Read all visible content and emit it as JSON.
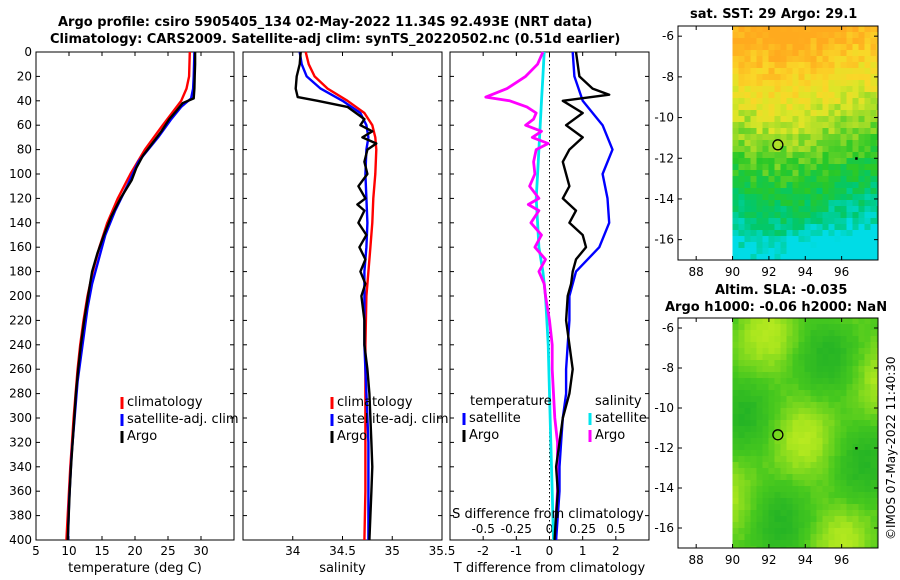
{
  "titles": {
    "line1": "Argo profile: csiro 5905405_134 02-May-2022 11.34S 92.493E (NRT data)",
    "line2": "Climatology: CARS2009. Satellite-adj clim: synTS_20220502.nc (0.51d earlier)",
    "sst": "sat. SST: 29 Argo: 29.1",
    "sla1": "Altim. SLA: -0.035",
    "sla2": "Argo h1000: -0.06 h2000: NaN"
  },
  "watermark": "©IMOS 07-May-2022 11:40:30",
  "colors": {
    "climatology": "#ff0000",
    "satellite": "#0000ff",
    "argo": "#000000",
    "sal_sat": "#00e5ee",
    "sal_argo": "#ff00ff"
  },
  "chart_data": [
    {
      "type": "line",
      "xlabel": "temperature (deg C)",
      "ylabel": "",
      "xlim": [
        5,
        35
      ],
      "ylim": [
        400,
        0
      ],
      "xticks": [
        "5",
        "10",
        "15",
        "20",
        "25",
        "30"
      ],
      "yticks": [
        "0",
        "20",
        "40",
        "60",
        "80",
        "100",
        "120",
        "140",
        "160",
        "180",
        "200",
        "220",
        "240",
        "260",
        "280",
        "300",
        "320",
        "340",
        "360",
        "380",
        "400"
      ],
      "legend": [
        "climatology",
        "satellite-adj. clim",
        "Argo"
      ],
      "series": [
        {
          "name": "climatology",
          "color": "#ff0000",
          "depth": [
            0,
            20,
            30,
            40,
            50,
            60,
            80,
            100,
            120,
            140,
            160,
            180,
            200,
            220,
            240,
            260,
            280,
            300,
            320,
            340,
            360,
            380,
            400
          ],
          "values": [
            28.3,
            28.2,
            27.8,
            27,
            25.6,
            24.2,
            21.5,
            19.3,
            17.4,
            15.8,
            14.6,
            13.6,
            12.8,
            12.2,
            11.7,
            11.3,
            11.0,
            10.7,
            10.45,
            10.2,
            10.0,
            9.8,
            9.6
          ]
        },
        {
          "name": "satellite-adj. clim",
          "color": "#0000ff",
          "depth": [
            0,
            20,
            30,
            38,
            45,
            55,
            70,
            90,
            110,
            130,
            150,
            170,
            190,
            210,
            230,
            250,
            270,
            290,
            310,
            330,
            350,
            370,
            390,
            400
          ],
          "values": [
            29.0,
            28.9,
            28.8,
            28.5,
            27,
            25.5,
            23.5,
            20.5,
            18.8,
            17.0,
            15.5,
            14.5,
            13.5,
            12.8,
            12.3,
            11.8,
            11.3,
            11.0,
            10.7,
            10.4,
            10.2,
            10.0,
            9.9,
            9.85
          ]
        },
        {
          "name": "Argo",
          "color": "#000000",
          "depth": [
            0,
            10,
            20,
            30,
            38,
            42,
            48,
            55,
            65,
            75,
            85,
            95,
            105,
            120,
            135,
            150,
            165,
            180,
            200,
            220,
            240,
            260,
            280,
            300,
            320,
            340,
            360,
            380,
            400
          ],
          "values": [
            29.1,
            29.1,
            29.05,
            29.0,
            28.9,
            27.2,
            26.3,
            25.2,
            24.0,
            22.6,
            21.2,
            20.2,
            19.5,
            17.8,
            16.4,
            15.3,
            14.3,
            13.5,
            12.9,
            12.3,
            11.8,
            11.4,
            11.05,
            10.8,
            10.55,
            10.3,
            10.1,
            9.95,
            9.8
          ]
        }
      ]
    },
    {
      "type": "line",
      "xlabel": "salinity",
      "ylabel": "",
      "xlim": [
        33.5,
        35.5
      ],
      "ylim": [
        400,
        0
      ],
      "xticks": [
        "34",
        "34.5",
        "35",
        "35.5"
      ],
      "legend": [
        "climatology",
        "satellite-adj. clim",
        "Argo"
      ],
      "series": [
        {
          "name": "climatology",
          "color": "#ff0000",
          "depth": [
            0,
            10,
            20,
            30,
            40,
            50,
            60,
            70,
            80,
            100,
            120,
            140,
            160,
            180,
            200,
            240,
            280,
            320,
            360,
            400
          ],
          "values": [
            34.13,
            34.16,
            34.22,
            34.35,
            34.55,
            34.72,
            34.8,
            34.83,
            34.84,
            34.83,
            34.81,
            34.8,
            34.78,
            34.76,
            34.74,
            34.73,
            34.73,
            34.73,
            34.73,
            34.72
          ]
        },
        {
          "name": "satellite-adj. clim",
          "color": "#0000ff",
          "depth": [
            0,
            10,
            20,
            30,
            40,
            50,
            60,
            70,
            80,
            100,
            120,
            140,
            160,
            180,
            200,
            220,
            240,
            260,
            280,
            300,
            320,
            340,
            360,
            380,
            400
          ],
          "values": [
            34.07,
            34.09,
            34.14,
            34.28,
            34.5,
            34.68,
            34.74,
            34.76,
            34.74,
            34.73,
            34.74,
            34.75,
            34.74,
            34.72,
            34.72,
            34.72,
            34.72,
            34.73,
            34.74,
            34.75,
            34.76,
            34.76,
            34.76,
            34.76,
            34.76
          ]
        },
        {
          "name": "Argo",
          "color": "#000000",
          "depth": [
            0,
            10,
            20,
            30,
            37,
            40,
            45,
            55,
            60,
            65,
            70,
            75,
            80,
            90,
            100,
            110,
            120,
            125,
            130,
            140,
            150,
            160,
            170,
            180,
            190,
            200,
            220,
            240,
            260,
            280,
            300,
            320,
            340,
            360,
            380,
            400
          ],
          "values": [
            34.08,
            34.07,
            34.04,
            34.03,
            34.05,
            34.25,
            34.55,
            34.72,
            34.68,
            34.8,
            34.7,
            34.84,
            34.75,
            34.72,
            34.75,
            34.66,
            34.73,
            34.65,
            34.72,
            34.66,
            34.74,
            34.67,
            34.73,
            34.68,
            34.73,
            34.69,
            34.72,
            34.72,
            34.75,
            34.77,
            34.78,
            34.79,
            34.8,
            34.79,
            34.78,
            34.77
          ]
        }
      ]
    },
    {
      "type": "line",
      "xlabel": "T difference from climatology",
      "xlabel_top": "S difference from climatology",
      "xlim": [
        -3,
        3
      ],
      "ylim": [
        400,
        0
      ],
      "xticks": [
        "-2",
        "-1",
        "0",
        "1",
        "2"
      ],
      "xticks_s": [
        "-0.5",
        "-0.25",
        "0",
        "0.25",
        "0.5"
      ],
      "legend_t_title": "temperature",
      "legend_s_title": "salinity",
      "legend": [
        "satellite",
        "Argo",
        "satellite",
        "Argo"
      ],
      "series": [
        {
          "name": "temperature satellite",
          "color": "#0000ff",
          "depth": [
            0,
            20,
            40,
            60,
            80,
            100,
            120,
            140,
            160,
            180,
            200,
            220,
            240,
            260,
            280,
            300,
            320,
            340,
            360,
            380,
            400
          ],
          "values": [
            0.7,
            0.75,
            1.0,
            1.6,
            1.9,
            1.6,
            1.75,
            1.8,
            1.5,
            0.8,
            0.6,
            0.6,
            0.55,
            0.5,
            0.5,
            0.4,
            0.35,
            0.3,
            0.3,
            0.25,
            0.2
          ]
        },
        {
          "name": "temperature Argo",
          "color": "#000000",
          "depth": [
            0,
            10,
            20,
            30,
            35,
            40,
            50,
            60,
            70,
            80,
            90,
            100,
            110,
            120,
            130,
            140,
            150,
            160,
            170,
            180,
            190,
            200,
            220,
            240,
            260,
            280,
            300,
            320,
            340,
            360,
            380,
            400
          ],
          "values": [
            0.8,
            0.85,
            0.9,
            1.3,
            1.8,
            0.4,
            1.0,
            0.5,
            1.0,
            0.6,
            0.4,
            0.5,
            0.6,
            0.4,
            0.8,
            0.6,
            1.0,
            1.1,
            0.8,
            0.7,
            0.65,
            0.55,
            0.5,
            0.6,
            0.7,
            0.6,
            0.4,
            0.3,
            0.2,
            0.25,
            0.2,
            0.15
          ]
        },
        {
          "name": "salinity satellite",
          "color": "#00e5ee",
          "depth": [
            0,
            20,
            40,
            60,
            80,
            100,
            120,
            140,
            160,
            180,
            200,
            240,
            280,
            320,
            360,
            400
          ],
          "values": [
            -0.04,
            -0.05,
            -0.06,
            -0.07,
            -0.08,
            -0.09,
            -0.1,
            -0.09,
            -0.08,
            -0.05,
            -0.03,
            -0.01,
            0.0,
            0.01,
            0.02,
            0.03
          ]
        },
        {
          "name": "salinity Argo",
          "color": "#ff00ff",
          "depth": [
            0,
            10,
            20,
            30,
            37,
            40,
            45,
            50,
            55,
            60,
            65,
            70,
            75,
            80,
            90,
            100,
            110,
            120,
            125,
            130,
            140,
            150,
            160,
            170,
            180,
            190,
            200,
            220,
            240,
            260,
            280,
            300,
            320,
            340,
            360,
            380,
            400
          ],
          "values": [
            -0.05,
            -0.09,
            -0.18,
            -0.32,
            -0.48,
            -0.3,
            -0.17,
            -0.1,
            -0.12,
            -0.18,
            -0.06,
            -0.13,
            -0.01,
            -0.1,
            -0.12,
            -0.11,
            -0.15,
            -0.08,
            -0.16,
            -0.08,
            -0.14,
            -0.06,
            -0.11,
            -0.03,
            -0.08,
            -0.04,
            -0.03,
            0.0,
            0.02,
            0.02,
            0.03,
            0.04,
            0.06,
            0.06,
            0.06,
            0.05,
            0.05
          ]
        }
      ]
    },
    {
      "type": "heatmap",
      "title": "sat. SST: 29 Argo: 29.1",
      "xlim": [
        87,
        98
      ],
      "ylim": [
        -17,
        -5.5
      ],
      "xticks": [
        "88",
        "90",
        "92",
        "94",
        "96"
      ],
      "yticks": [
        "-6",
        "-8",
        "-10",
        "-12",
        "-14",
        "-16"
      ],
      "argo_position": {
        "lon": 92.493,
        "lat": -11.34
      }
    },
    {
      "type": "heatmap",
      "title": "Altim. SLA: -0.035",
      "xlim": [
        87,
        98
      ],
      "ylim": [
        -17,
        -5.5
      ],
      "xticks": [
        "88",
        "90",
        "92",
        "94",
        "96"
      ],
      "yticks": [
        "-6",
        "-8",
        "-10",
        "-12",
        "-14",
        "-16"
      ],
      "argo_position": {
        "lon": 92.493,
        "lat": -11.34
      }
    }
  ]
}
